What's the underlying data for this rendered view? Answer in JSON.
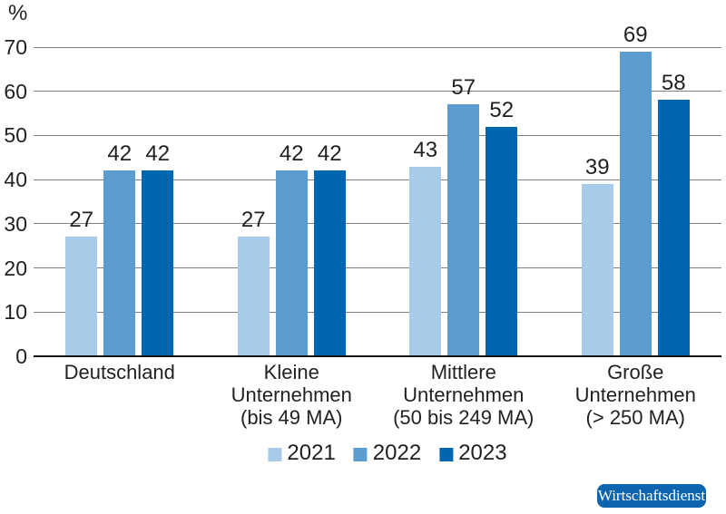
{
  "chart_data": {
    "type": "bar",
    "title": "",
    "ylabel": "%",
    "xlabel": "",
    "ylim": [
      0,
      70
    ],
    "yticks": [
      0,
      10,
      20,
      30,
      40,
      50,
      60,
      70
    ],
    "grid": true,
    "legend_position": "bottom",
    "categories": [
      "Deutschland",
      "Kleine\nUnternehmen\n(bis 49 MA)",
      "Mittlere\nUnternehmen\n(50 bis 249 MA)",
      "Große\nUnternehmen\n(> 250 MA)"
    ],
    "series": [
      {
        "name": "2021",
        "color": "#a7cbe8",
        "values": [
          27,
          27,
          43,
          39
        ]
      },
      {
        "name": "2022",
        "color": "#5b9cd1",
        "values": [
          42,
          42,
          57,
          69
        ]
      },
      {
        "name": "2023",
        "color": "#0166b0",
        "values": [
          42,
          42,
          52,
          58
        ]
      }
    ]
  },
  "axis": {
    "unit_label": "%"
  },
  "badge": {
    "label": "Wirtschaftsdienst",
    "background": "#0e65af",
    "text_color": "#ffffff"
  },
  "colors": {
    "text": "#231f20",
    "gridline": "#808080",
    "baseline": "#161412",
    "background": "#ffffff"
  }
}
